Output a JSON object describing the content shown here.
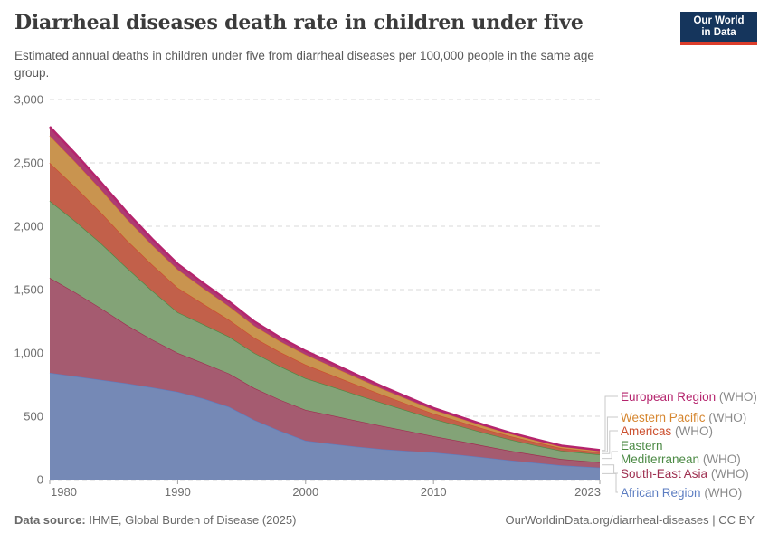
{
  "header": {
    "title": "Diarrheal diseases death rate in children under five",
    "subtitle": "Estimated annual deaths in children under five from diarrheal diseases per 100,000 people in the same age group.",
    "logo_line1": "Our World",
    "logo_line2": "in Data"
  },
  "chart_data": {
    "type": "area",
    "stacked": true,
    "title": "Diarrheal diseases death rate in children under five",
    "xlabel": "",
    "ylabel": "",
    "xlim": [
      1980,
      2023
    ],
    "ylim": [
      0,
      3000
    ],
    "grid": "dashed-horizontal",
    "legend_position": "right",
    "x": [
      1980,
      1982,
      1984,
      1986,
      1988,
      1990,
      1992,
      1994,
      1996,
      1998,
      2000,
      2002,
      2004,
      2006,
      2008,
      2010,
      2012,
      2014,
      2016,
      2018,
      2020,
      2023
    ],
    "x_ticks": [
      {
        "value": 1980,
        "label": "1980"
      },
      {
        "value": 1990,
        "label": "1990"
      },
      {
        "value": 2000,
        "label": "2000"
      },
      {
        "value": 2010,
        "label": "2010"
      },
      {
        "value": 2023,
        "label": "2023"
      }
    ],
    "y_ticks": [
      {
        "value": 0,
        "label": "0"
      },
      {
        "value": 500,
        "label": "500"
      },
      {
        "value": 1000,
        "label": "1,000"
      },
      {
        "value": 1500,
        "label": "1,500"
      },
      {
        "value": 2000,
        "label": "2,000"
      },
      {
        "value": 2500,
        "label": "2,500"
      },
      {
        "value": 3000,
        "label": "3,000"
      }
    ],
    "series": [
      {
        "name": "African Region",
        "suffix": "(WHO)",
        "color": "#5d7ec2",
        "fill": "#7589b6",
        "values": [
          843,
          815,
          788,
          760,
          728,
          693,
          640,
          575,
          470,
          385,
          307,
          282,
          260,
          240,
          226,
          214,
          196,
          174,
          152,
          132,
          112,
          95
        ]
      },
      {
        "name": "South-East Asia",
        "suffix": "(WHO)",
        "color": "#9e2f50",
        "fill": "#a55b70",
        "values": [
          750,
          662,
          565,
          462,
          378,
          307,
          281,
          263,
          252,
          246,
          243,
          226,
          205,
          183,
          158,
          129,
          110,
          92,
          76,
          62,
          50,
          42
        ]
      },
      {
        "name": "Eastern Mediterranean",
        "suffix": "(WHO)",
        "color": "#4c8a45",
        "fill": "#83a377",
        "values": [
          607,
          562,
          512,
          452,
          386,
          321,
          305,
          291,
          277,
          263,
          250,
          228,
          205,
          182,
          159,
          136,
          118,
          102,
          88,
          76,
          66,
          60
        ]
      },
      {
        "name": "Americas",
        "suffix": "(WHO)",
        "color": "#cc4f2e",
        "fill": "#c2604a",
        "values": [
          300,
          271,
          243,
          219,
          205,
          193,
          161,
          133,
          121,
          113,
          107,
          92,
          78,
          64,
          52,
          42,
          36,
          31,
          27,
          24,
          20,
          18
        ]
      },
      {
        "name": "Western Pacific",
        "suffix": "(WHO)",
        "color": "#d6862f",
        "fill": "#c9944f",
        "values": [
          214,
          196,
          179,
          166,
          154,
          143,
          123,
          106,
          93,
          84,
          79,
          67,
          56,
          46,
          37,
          29,
          25,
          21,
          18,
          16,
          13,
          12
        ]
      },
      {
        "name": "European Region",
        "suffix": "(WHO)",
        "color": "#b5246d",
        "fill": "#ad3c72",
        "values": [
          72,
          66,
          60,
          55,
          50,
          45,
          41,
          38,
          35,
          32,
          30,
          27,
          24,
          21,
          18,
          15,
          13,
          11,
          9,
          8,
          7,
          6
        ]
      }
    ]
  },
  "footer": {
    "source_label": "Data source:",
    "source_value": " IHME, Global Burden of Disease (2025)",
    "link": "OurWorldinData.org/diarrheal-diseases | CC BY"
  }
}
